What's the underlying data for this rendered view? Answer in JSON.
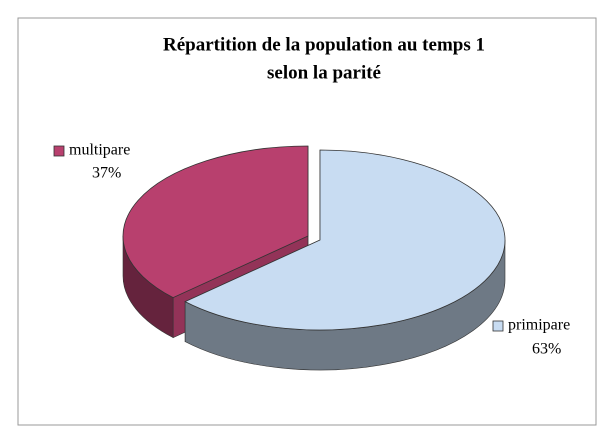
{
  "chart_data": {
    "type": "pie",
    "title": [
      "Répartition de la population au temps 1",
      "selon la parité"
    ],
    "categories": [
      "primipare",
      "multipare"
    ],
    "values": [
      63,
      37
    ],
    "value_labels": [
      "63%",
      "37%"
    ],
    "colors": [
      "#c8dcf2",
      "#b8406e"
    ]
  }
}
